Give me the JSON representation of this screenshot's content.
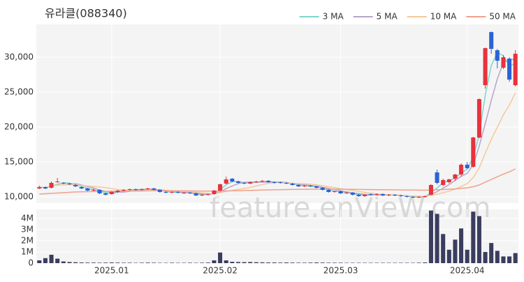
{
  "chart_data": {
    "type": "candlestick",
    "title": "유라클(088340)",
    "watermark": "feature.enVieW.com",
    "legend": "top-right",
    "grid": true,
    "up_color": "#e8323c",
    "down_color": "#2b63d6",
    "categories": [
      null,
      null,
      null,
      null,
      null,
      null,
      null,
      null,
      null,
      null,
      null,
      null,
      "2025.01",
      null,
      null,
      null,
      null,
      null,
      null,
      null,
      null,
      null,
      null,
      null,
      null,
      null,
      null,
      null,
      null,
      null,
      "2025.02",
      null,
      null,
      null,
      null,
      null,
      null,
      null,
      null,
      null,
      null,
      null,
      null,
      null,
      null,
      null,
      null,
      null,
      null,
      null,
      "2025.03",
      null,
      null,
      null,
      null,
      null,
      null,
      null,
      null,
      null,
      null,
      null,
      null,
      null,
      null,
      null,
      null,
      null,
      null,
      null,
      null,
      "2025.04",
      null,
      null,
      null,
      null,
      null,
      null,
      null,
      null
    ],
    "open": [
      11200,
      11400,
      11300,
      12100,
      12000,
      11900,
      11700,
      11400,
      11200,
      10900,
      11000,
      10500,
      10400,
      10700,
      10900,
      11000,
      11100,
      11000,
      11100,
      11200,
      11000,
      10700,
      10600,
      10700,
      10500,
      10600,
      10500,
      10200,
      10300,
      10400,
      10900,
      11900,
      12600,
      12200,
      12000,
      11900,
      12100,
      12200,
      12300,
      12100,
      12100,
      12000,
      11900,
      11700,
      11500,
      11600,
      11500,
      11300,
      11000,
      10700,
      10800,
      10500,
      10600,
      10300,
      10100,
      10400,
      10300,
      10400,
      10200,
      10300,
      10200,
      10100,
      10000,
      9900,
      10000,
      10300,
      13500,
      11700,
      12100,
      12600,
      13200,
      14600,
      14300,
      18500,
      26000,
      33600,
      31000,
      28500,
      29800,
      26000
    ],
    "high": [
      11600,
      11500,
      12200,
      12700,
      12100,
      12000,
      11800,
      11500,
      11300,
      11200,
      11100,
      10600,
      10800,
      11000,
      11100,
      11200,
      11200,
      11200,
      11300,
      11300,
      11100,
      10800,
      10800,
      10800,
      10700,
      10700,
      10600,
      10400,
      10500,
      11000,
      11900,
      12900,
      12700,
      12300,
      12100,
      12200,
      12300,
      12400,
      12400,
      12200,
      12200,
      12100,
      12000,
      11800,
      11700,
      11700,
      11600,
      11400,
      11100,
      10900,
      10900,
      10700,
      10700,
      10400,
      10400,
      10500,
      10500,
      10500,
      10400,
      10400,
      10300,
      10200,
      10100,
      10100,
      10200,
      11800,
      13900,
      12600,
      12600,
      13300,
      14800,
      15000,
      18600,
      24100,
      31400,
      33700,
      31200,
      30300,
      30000,
      31000
    ],
    "low": [
      11100,
      11100,
      11200,
      12000,
      11800,
      11700,
      11400,
      11100,
      10800,
      10800,
      10400,
      10200,
      10300,
      10600,
      10800,
      10900,
      10900,
      10900,
      11000,
      10900,
      10600,
      10500,
      10500,
      10500,
      10400,
      10400,
      10100,
      10100,
      10200,
      10300,
      10800,
      11800,
      12100,
      11900,
      11800,
      11800,
      12000,
      12100,
      12000,
      11900,
      11900,
      11800,
      11600,
      11400,
      11400,
      11400,
      11200,
      10900,
      10600,
      10600,
      10400,
      10400,
      10200,
      10000,
      10000,
      10200,
      10200,
      10100,
      10100,
      10100,
      10000,
      9900,
      9800,
      9800,
      9900,
      10200,
      11800,
      11500,
      11900,
      12300,
      12900,
      14000,
      14200,
      18400,
      25500,
      30500,
      28400,
      28300,
      26500,
      25800
    ],
    "close": [
      11400,
      11200,
      12000,
      12200,
      11900,
      11800,
      11500,
      11200,
      10900,
      11000,
      10500,
      10300,
      10700,
      10900,
      11000,
      11100,
      11000,
      11100,
      11200,
      11000,
      10700,
      10600,
      10700,
      10600,
      10600,
      10500,
      10200,
      10300,
      10400,
      10900,
      11800,
      12500,
      12200,
      12000,
      11900,
      12100,
      12200,
      12300,
      12100,
      12000,
      12000,
      11900,
      11700,
      11500,
      11600,
      11500,
      11300,
      11000,
      10700,
      10800,
      10500,
      10600,
      10300,
      10100,
      10300,
      10300,
      10400,
      10200,
      10300,
      10200,
      10100,
      10000,
      9900,
      10000,
      10100,
      11700,
      12000,
      12400,
      12500,
      13200,
      14600,
      14100,
      18500,
      24000,
      31300,
      31200,
      29500,
      30000,
      26800,
      30500
    ],
    "ylim": [
      9100,
      34700
    ],
    "yticks": [
      {
        "value": 10000,
        "label": "10,000"
      },
      {
        "value": 15000,
        "label": "15,000"
      },
      {
        "value": 20000,
        "label": "20,000"
      },
      {
        "value": 25000,
        "label": "25,000"
      },
      {
        "value": 30000,
        "label": "30,000"
      }
    ],
    "series": [
      {
        "name": "3 MA",
        "color": "#7fd3cc",
        "values": [
          11400,
          11300,
          11530,
          11800,
          12030,
          11970,
          11730,
          11500,
          11200,
          11030,
          10800,
          10600,
          10500,
          10630,
          10870,
          11000,
          11030,
          11070,
          11100,
          11100,
          10970,
          10770,
          10670,
          10630,
          10630,
          10570,
          10430,
          10330,
          10300,
          10530,
          11030,
          11730,
          12170,
          12230,
          12030,
          12000,
          12070,
          12200,
          12200,
          12130,
          12030,
          11970,
          11870,
          11700,
          11600,
          11530,
          11470,
          11270,
          11000,
          10830,
          10670,
          10630,
          10470,
          10330,
          10230,
          10230,
          10330,
          10300,
          10300,
          10230,
          10200,
          10100,
          10000,
          9970,
          10000,
          10600,
          11270,
          12030,
          12300,
          12700,
          13430,
          13970,
          15730,
          18870,
          24600,
          28830,
          30670,
          30230,
          28770,
          29100
        ]
      },
      {
        "name": "5 MA",
        "color": "#b9a3c8",
        "values": [
          11400,
          11300,
          11530,
          11700,
          11740,
          11820,
          11880,
          11720,
          11460,
          11280,
          10980,
          10780,
          10680,
          10680,
          10680,
          10800,
          10940,
          11020,
          11080,
          11080,
          11000,
          10920,
          10840,
          10720,
          10640,
          10600,
          10520,
          10440,
          10400,
          10460,
          10720,
          11180,
          11560,
          11880,
          12080,
          12140,
          12080,
          12100,
          12120,
          12140,
          12120,
          12060,
          11940,
          11820,
          11740,
          11640,
          11520,
          11380,
          11220,
          11060,
          10860,
          10720,
          10580,
          10460,
          10360,
          10320,
          10280,
          10260,
          10300,
          10280,
          10240,
          10160,
          10100,
          10040,
          10020,
          10340,
          10740,
          11240,
          11740,
          12360,
          12940,
          13360,
          14580,
          17280,
          20500,
          23820,
          26900,
          29200,
          29760,
          29600
        ]
      },
      {
        "name": "10 MA",
        "color": "#f4c99a",
        "values": [
          11400,
          11300,
          11530,
          11700,
          11740,
          11750,
          11710,
          11650,
          11560,
          11500,
          11410,
          11320,
          11190,
          11060,
          10970,
          10900,
          10850,
          10840,
          10870,
          10880,
          10900,
          10910,
          10880,
          10830,
          10790,
          10730,
          10650,
          10570,
          10490,
          10480,
          10590,
          10780,
          10930,
          11070,
          11200,
          11360,
          11560,
          11760,
          11930,
          12040,
          12060,
          12000,
          11950,
          11900,
          11870,
          11810,
          11720,
          11590,
          11450,
          11330,
          11180,
          11050,
          10910,
          10770,
          10640,
          10520,
          10430,
          10350,
          10310,
          10250,
          10210,
          10150,
          10110,
          10090,
          10070,
          10210,
          10370,
          10590,
          10810,
          11100,
          11490,
          11900,
          12760,
          14150,
          16270,
          18220,
          19970,
          21730,
          23160,
          24890
        ]
      },
      {
        "name": "50 MA",
        "color": "#f2a08a",
        "values": [
          10400,
          10450,
          10500,
          10550,
          10600,
          10650,
          10700,
          10720,
          10740,
          10760,
          10780,
          10790,
          10800,
          10810,
          10820,
          10830,
          10840,
          10850,
          10860,
          10870,
          10870,
          10870,
          10870,
          10860,
          10860,
          10850,
          10840,
          10830,
          10820,
          10820,
          10830,
          10850,
          10870,
          10890,
          10910,
          10930,
          10950,
          10970,
          10990,
          11010,
          11030,
          11050,
          11060,
          11070,
          11080,
          11090,
          11100,
          11100,
          11100,
          11100,
          11090,
          11080,
          11070,
          11060,
          11050,
          11040,
          11030,
          11020,
          11010,
          11000,
          10990,
          10980,
          10970,
          10960,
          10950,
          10980,
          11010,
          11050,
          11090,
          11140,
          11220,
          11290,
          11450,
          11700,
          12110,
          12500,
          12870,
          13260,
          13580,
          14000
        ]
      }
    ],
    "volume": {
      "color": "#3a3d5e",
      "values": [
        250000,
        450000,
        750000,
        400000,
        150000,
        100000,
        80000,
        60000,
        50000,
        50000,
        40000,
        50000,
        60000,
        50000,
        40000,
        40000,
        30000,
        40000,
        50000,
        40000,
        30000,
        30000,
        40000,
        30000,
        30000,
        40000,
        30000,
        40000,
        50000,
        250000,
        950000,
        250000,
        120000,
        100000,
        90000,
        100000,
        80000,
        70000,
        60000,
        60000,
        50000,
        60000,
        50000,
        40000,
        40000,
        50000,
        60000,
        50000,
        40000,
        40000,
        40000,
        30000,
        30000,
        30000,
        30000,
        30000,
        30000,
        30000,
        30000,
        30000,
        30000,
        30000,
        30000,
        40000,
        60000,
        4700000,
        4400000,
        2600000,
        1200000,
        2100000,
        3100000,
        1200000,
        4600000,
        4200000,
        1000000,
        1800000,
        1100000,
        600000,
        600000,
        900000
      ],
      "ylim": [
        0,
        4800000
      ],
      "yticks": [
        0,
        {
          "value": 1000000,
          "label": "1M"
        },
        {
          "value": 2000000,
          "label": "2M"
        },
        {
          "value": 3000000,
          "label": "3M"
        },
        {
          "value": 4000000,
          "label": "4M"
        }
      ]
    }
  }
}
